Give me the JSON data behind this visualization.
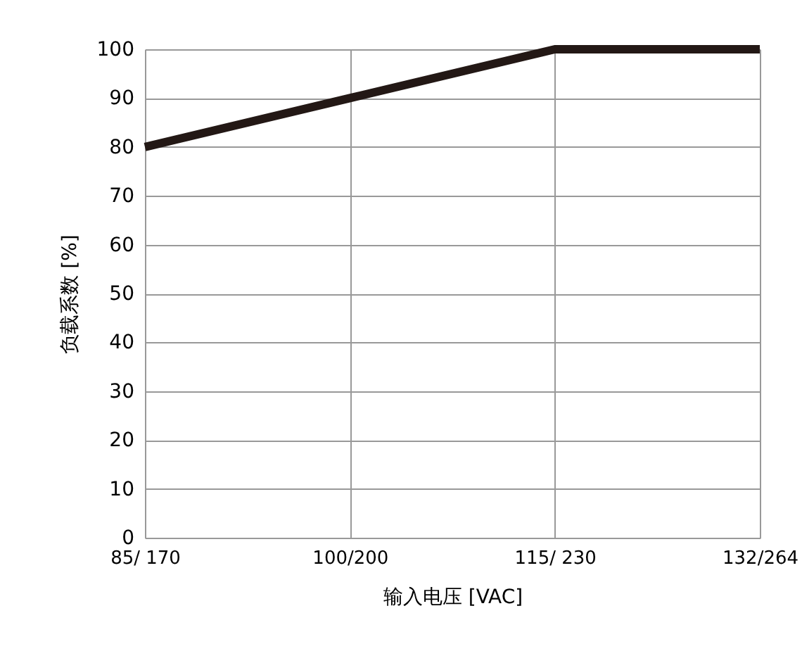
{
  "chart_data": {
    "type": "line",
    "xlabel": "输入电压 [VAC]",
    "ylabel": "负载系数 [%]",
    "categories": [
      "85/ 170",
      "100/200",
      "115/ 230",
      "132/264"
    ],
    "series": [
      {
        "color": "#231815",
        "values": [
          80,
          90,
          100,
          100
        ]
      }
    ],
    "ylim": [
      0,
      100
    ],
    "yticks": [
      0,
      10,
      20,
      30,
      40,
      50,
      60,
      70,
      80,
      90,
      100
    ],
    "grid": true,
    "marker": "none",
    "line_style": "solid"
  }
}
